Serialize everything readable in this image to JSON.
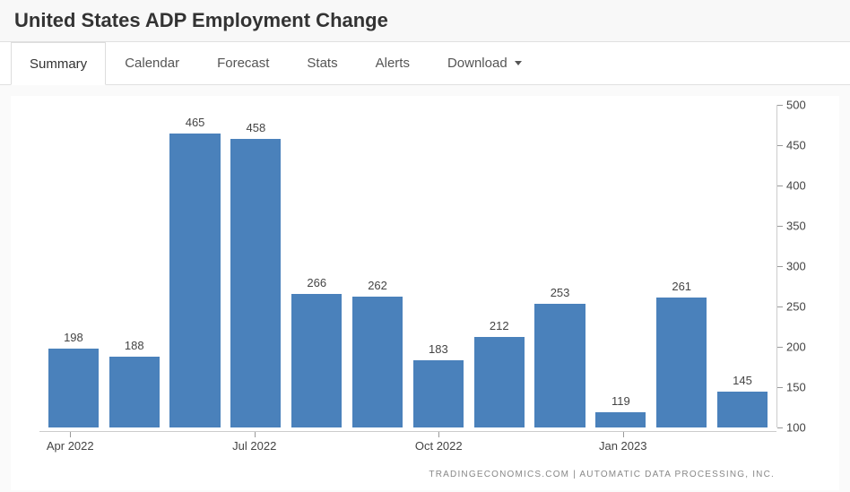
{
  "header": {
    "title": "United States ADP Employment Change"
  },
  "tabs": [
    {
      "label": "Summary",
      "active": true,
      "dropdown": false
    },
    {
      "label": "Calendar",
      "active": false,
      "dropdown": false
    },
    {
      "label": "Forecast",
      "active": false,
      "dropdown": false
    },
    {
      "label": "Stats",
      "active": false,
      "dropdown": false
    },
    {
      "label": "Alerts",
      "active": false,
      "dropdown": false
    },
    {
      "label": "Download",
      "active": false,
      "dropdown": true
    }
  ],
  "chart": {
    "type": "bar",
    "bar_color": "#4a81bb",
    "background_color": "#ffffff",
    "axis_color": "#cccccc",
    "tick_color": "#999999",
    "label_color": "#444444",
    "value_label_fontsize": 13,
    "axis_label_fontsize": 13,
    "ylim": [
      100,
      500
    ],
    "ytick_step": 50,
    "yticks": [
      100,
      150,
      200,
      250,
      300,
      350,
      400,
      450,
      500
    ],
    "bar_width_ratio": 0.88,
    "values": [
      198,
      188,
      465,
      458,
      266,
      262,
      183,
      212,
      253,
      119,
      261,
      145
    ],
    "x_axis_labels": [
      {
        "text": "Apr 2022",
        "position_index": 0
      },
      {
        "text": "Jul 2022",
        "position_index": 3
      },
      {
        "text": "Oct 2022",
        "position_index": 6
      },
      {
        "text": "Jan 2023",
        "position_index": 9
      }
    ]
  },
  "attribution": "TRADINGECONOMICS.COM  |  AUTOMATIC DATA PROCESSING, INC."
}
